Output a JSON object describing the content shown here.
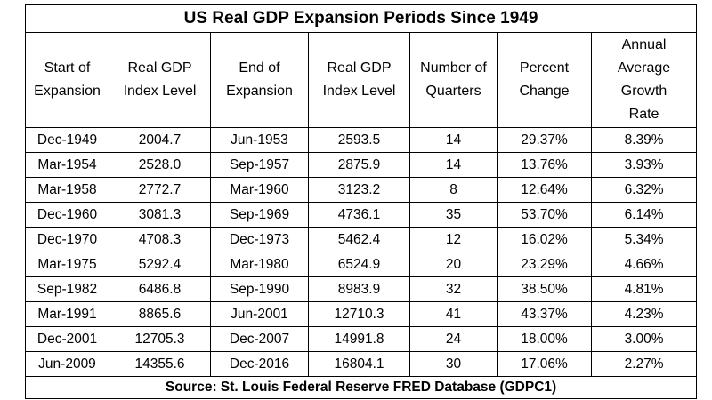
{
  "chart_data": {
    "type": "table",
    "title": "US Real GDP Expansion Periods Since 1949",
    "columns": [
      [
        "Start of",
        "Expansion"
      ],
      [
        "Real GDP",
        "Index Level"
      ],
      [
        "End of",
        "Expansion"
      ],
      [
        "Real GDP",
        "Index Level"
      ],
      [
        "Number of",
        "Quarters"
      ],
      [
        "Percent",
        "Change"
      ],
      [
        "Annual",
        "Average",
        "Growth",
        "Rate"
      ]
    ],
    "rows": [
      [
        "Dec-1949",
        "2004.7",
        "Jun-1953",
        "2593.5",
        "14",
        "29.37%",
        "8.39%"
      ],
      [
        "Mar-1954",
        "2528.0",
        "Sep-1957",
        "2875.9",
        "14",
        "13.76%",
        "3.93%"
      ],
      [
        "Mar-1958",
        "2772.7",
        "Mar-1960",
        "3123.2",
        "8",
        "12.64%",
        "6.32%"
      ],
      [
        "Dec-1960",
        "3081.3",
        "Sep-1969",
        "4736.1",
        "35",
        "53.70%",
        "6.14%"
      ],
      [
        "Dec-1970",
        "4708.3",
        "Dec-1973",
        "5462.4",
        "12",
        "16.02%",
        "5.34%"
      ],
      [
        "Mar-1975",
        "5292.4",
        "Mar-1980",
        "6524.9",
        "20",
        "23.29%",
        "4.66%"
      ],
      [
        "Sep-1982",
        "6486.8",
        "Sep-1990",
        "8983.9",
        "32",
        "38.50%",
        "4.81%"
      ],
      [
        "Mar-1991",
        "8865.6",
        "Jun-2001",
        "12710.3",
        "41",
        "43.37%",
        "4.23%"
      ],
      [
        "Dec-2001",
        "12705.3",
        "Dec-2007",
        "14991.8",
        "24",
        "18.00%",
        "3.00%"
      ],
      [
        "Jun-2009",
        "14355.6",
        "Dec-2016",
        "16804.1",
        "30",
        "17.06%",
        "2.27%"
      ]
    ],
    "source": "Source: St. Louis Federal Reserve FRED Database (GDPC1)"
  }
}
